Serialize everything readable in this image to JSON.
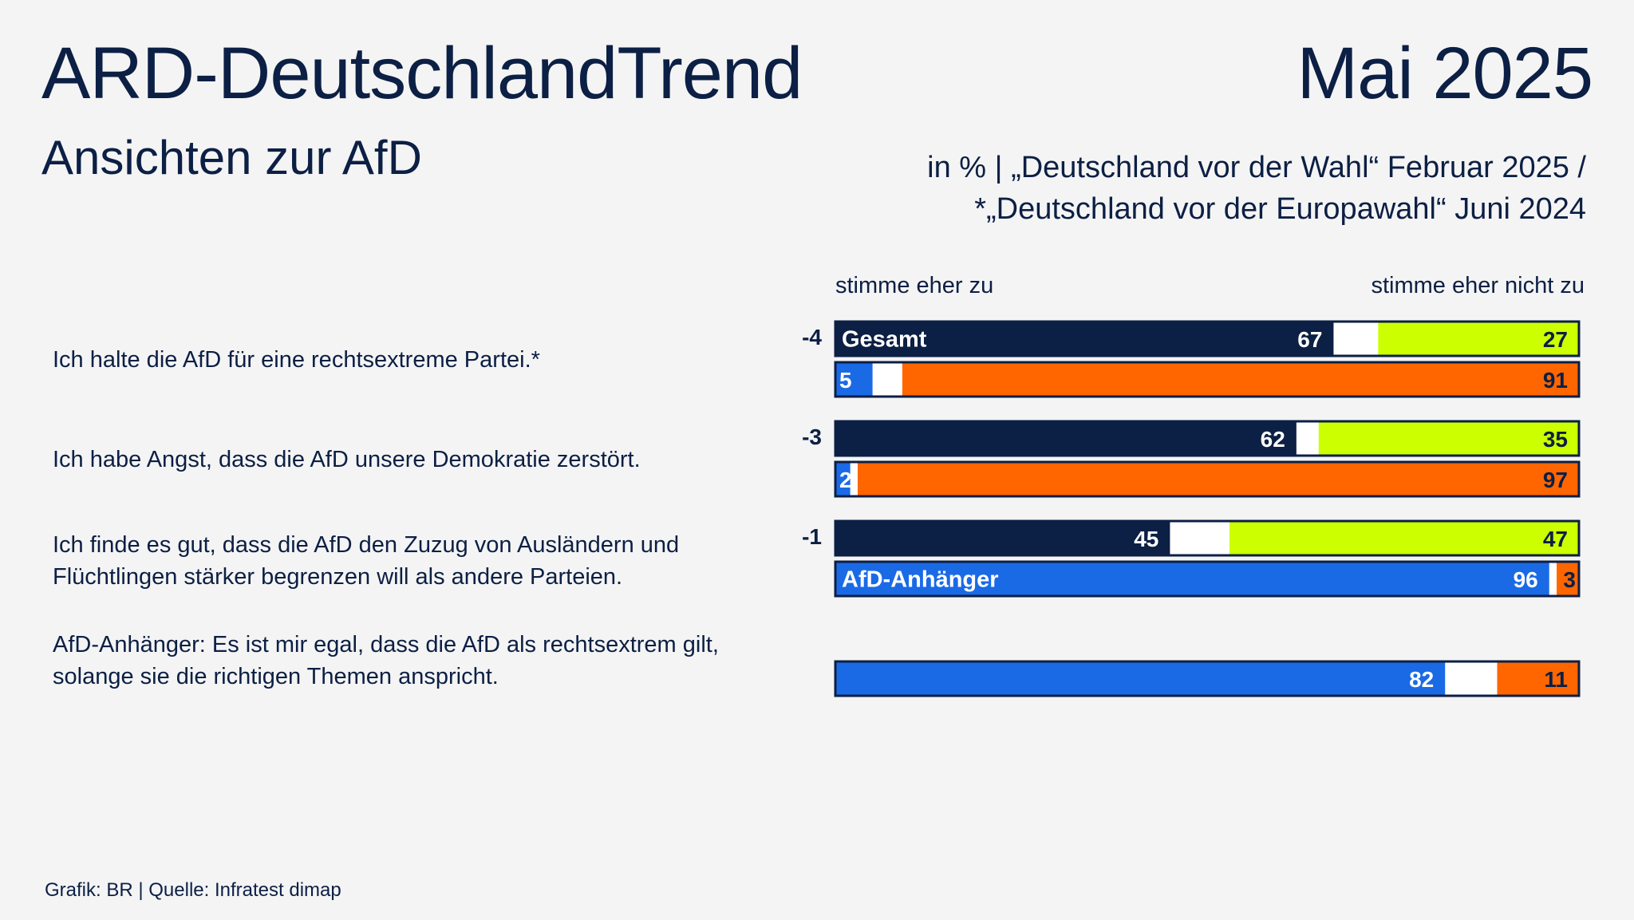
{
  "header": {
    "title": "ARD-DeutschlandTrend",
    "date": "Mai 2025",
    "subtitle": "Ansichten zur AfD",
    "note_line1": "in % | „Deutschland vor der Wahl“ Februar 2025 /",
    "note_line2": "*„Deutschland vor der Europawahl“ Juni 2024"
  },
  "footer": {
    "source": "Grafik: BR | Quelle: Infratest dimap"
  },
  "colors": {
    "gesamt_zu": "#0c1f44",
    "gesamt_nicht_zu": "#ccff00",
    "afd_zu": "#1a6ae6",
    "afd_nicht_zu": "#ff6600",
    "neutral": "#ffffff",
    "border": "#0c1f44"
  },
  "chart_data": {
    "type": "bar",
    "orientation": "horizontal",
    "stacked": true,
    "axis_label_left": "stimme eher zu",
    "axis_label_right": "stimme eher nicht zu",
    "series_labels": {
      "gesamt": "Gesamt",
      "afd": "AfD-Anhänger"
    },
    "unit": "%",
    "statements": [
      {
        "text": "Ich halte die AfD für eine rechtsextreme Partei.*",
        "change": "-4",
        "gesamt": {
          "zu": 67,
          "nicht_zu": 27
        },
        "afd": {
          "zu": 5,
          "nicht_zu": 91
        }
      },
      {
        "text": "Ich habe Angst, dass die AfD unsere Demokratie zerstört.",
        "change": "-3",
        "gesamt": {
          "zu": 62,
          "nicht_zu": 35
        },
        "afd": {
          "zu": 2,
          "nicht_zu": 97
        }
      },
      {
        "text": "Ich finde es gut, dass die AfD den Zuzug von Ausländern und Flüchtlingen stärker begrenzen will als andere Parteien.",
        "change": "-1",
        "gesamt": {
          "zu": 45,
          "nicht_zu": 47
        },
        "afd": {
          "zu": 96,
          "nicht_zu": 3
        }
      },
      {
        "text": "AfD-Anhänger: Es ist mir egal, dass die AfD als rechtsextrem gilt, solange sie die richtigen Themen anspricht.",
        "change": "",
        "gesamt": null,
        "afd": {
          "zu": 82,
          "nicht_zu": 11
        }
      }
    ]
  }
}
